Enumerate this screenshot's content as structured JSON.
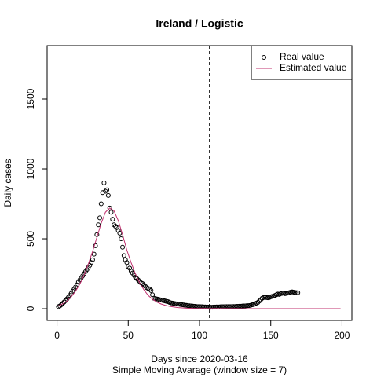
{
  "chart_data": {
    "type": "scatter",
    "title": "Ireland / Logistic",
    "x_label": "Days since 2020-03-16",
    "subtitle": "Simple Moving Avarage (window size = 7)",
    "y_label": "Daily cases",
    "xlim": [
      -6.92,
      206.92
    ],
    "ylim": [
      -84,
      1882
    ],
    "xticks": [
      0,
      50,
      100,
      150,
      200
    ],
    "yticks": [
      0,
      500,
      1000,
      1500
    ],
    "vline": 107,
    "legend": "topright",
    "series": [
      {
        "name": "Real value",
        "color": "#000000",
        "mark": "point",
        "x": [
          1,
          2,
          3,
          4,
          5,
          6,
          7,
          8,
          9,
          10,
          11,
          12,
          13,
          14,
          15,
          16,
          17,
          18,
          19,
          20,
          21,
          22,
          23,
          24,
          25,
          26,
          27,
          28,
          29,
          30,
          31,
          32,
          33,
          34,
          35,
          36,
          37,
          38,
          39,
          40,
          41,
          42,
          43,
          44,
          45,
          46,
          47,
          48,
          49,
          50,
          51,
          52,
          53,
          54,
          55,
          56,
          57,
          58,
          59,
          60,
          61,
          62,
          63,
          64,
          65,
          66,
          67,
          68,
          69,
          70,
          71,
          72,
          73,
          74,
          75,
          76,
          77,
          78,
          79,
          80,
          81,
          82,
          83,
          84,
          85,
          86,
          87,
          88,
          89,
          90,
          91,
          92,
          93,
          94,
          95,
          96,
          97,
          98,
          99,
          100,
          101,
          102,
          103,
          104,
          105,
          106,
          107,
          108,
          109,
          110,
          111,
          112,
          113,
          114,
          115,
          116,
          117,
          118,
          119,
          120,
          121,
          122,
          123,
          124,
          125,
          126,
          127,
          128,
          129,
          130,
          131,
          132,
          133,
          134,
          135,
          136,
          137,
          138,
          139,
          140,
          141,
          142,
          143,
          144,
          145,
          146,
          147,
          148,
          149,
          150,
          151,
          152,
          153,
          154,
          155,
          156,
          157,
          158,
          159,
          160,
          161,
          162,
          163,
          164,
          165,
          166,
          167,
          168,
          169
        ],
        "values": [
          15,
          20,
          28,
          38,
          48,
          58,
          70,
          82,
          95,
          110,
          125,
          140,
          155,
          170,
          190,
          205,
          220,
          235,
          250,
          265,
          280,
          295,
          310,
          330,
          350,
          390,
          450,
          530,
          600,
          650,
          750,
          830,
          900,
          840,
          850,
          810,
          720,
          690,
          640,
          600,
          590,
          580,
          560,
          540,
          500,
          440,
          380,
          350,
          330,
          300,
          290,
          270,
          255,
          240,
          225,
          215,
          205,
          195,
          185,
          180,
          170,
          160,
          150,
          145,
          140,
          130,
          100,
          75,
          72,
          70,
          68,
          65,
          62,
          60,
          58,
          55,
          52,
          50,
          45,
          42,
          40,
          38,
          36,
          35,
          33,
          32,
          30,
          28,
          27,
          25,
          24,
          22,
          21,
          20,
          19,
          18,
          17,
          16,
          15,
          15,
          14,
          14,
          13,
          13,
          12,
          12,
          12,
          11,
          11,
          12,
          12,
          13,
          13,
          13,
          14,
          14,
          14,
          15,
          15,
          15,
          15,
          15,
          16,
          16,
          16,
          17,
          17,
          18,
          18,
          19,
          20,
          20,
          21,
          22,
          23,
          25,
          28,
          30,
          35,
          40,
          45,
          55,
          65,
          75,
          80,
          82,
          80,
          78,
          80,
          85,
          88,
          90,
          95,
          100,
          105,
          102,
          108,
          110,
          112,
          108,
          110,
          112,
          115,
          118,
          120,
          118,
          116,
          115,
          114
        ]
      },
      {
        "name": "Estimated value",
        "color": "#c0306f",
        "mark": "line",
        "x": [
          1,
          4,
          7,
          10,
          13,
          16,
          19,
          22,
          25,
          28,
          31,
          34,
          37,
          40,
          43,
          46,
          49,
          52,
          55,
          58,
          61,
          64,
          67,
          70,
          73,
          76,
          79,
          82,
          85,
          88,
          91,
          94,
          97,
          100,
          103,
          106,
          109,
          112,
          115,
          118,
          121,
          124,
          127,
          130,
          133,
          136,
          139,
          142,
          145,
          148,
          151,
          154,
          157,
          160,
          163,
          166,
          169,
          172,
          175,
          178,
          181,
          184,
          187,
          190,
          193,
          196,
          199
        ],
        "values": [
          20,
          35,
          55,
          85,
          125,
          175,
          240,
          320,
          410,
          510,
          610,
          690,
          720,
          700,
          630,
          530,
          420,
          330,
          250,
          185,
          135,
          95,
          68,
          48,
          34,
          24,
          17,
          12,
          8,
          6,
          4,
          3,
          2,
          2,
          2,
          1,
          1,
          1,
          1,
          1,
          1,
          1,
          1,
          0,
          0,
          0,
          0,
          0,
          0,
          0,
          0,
          0,
          0,
          0,
          0,
          0,
          0,
          0,
          0,
          0,
          0,
          0,
          0,
          0,
          0,
          0,
          0
        ]
      }
    ]
  }
}
